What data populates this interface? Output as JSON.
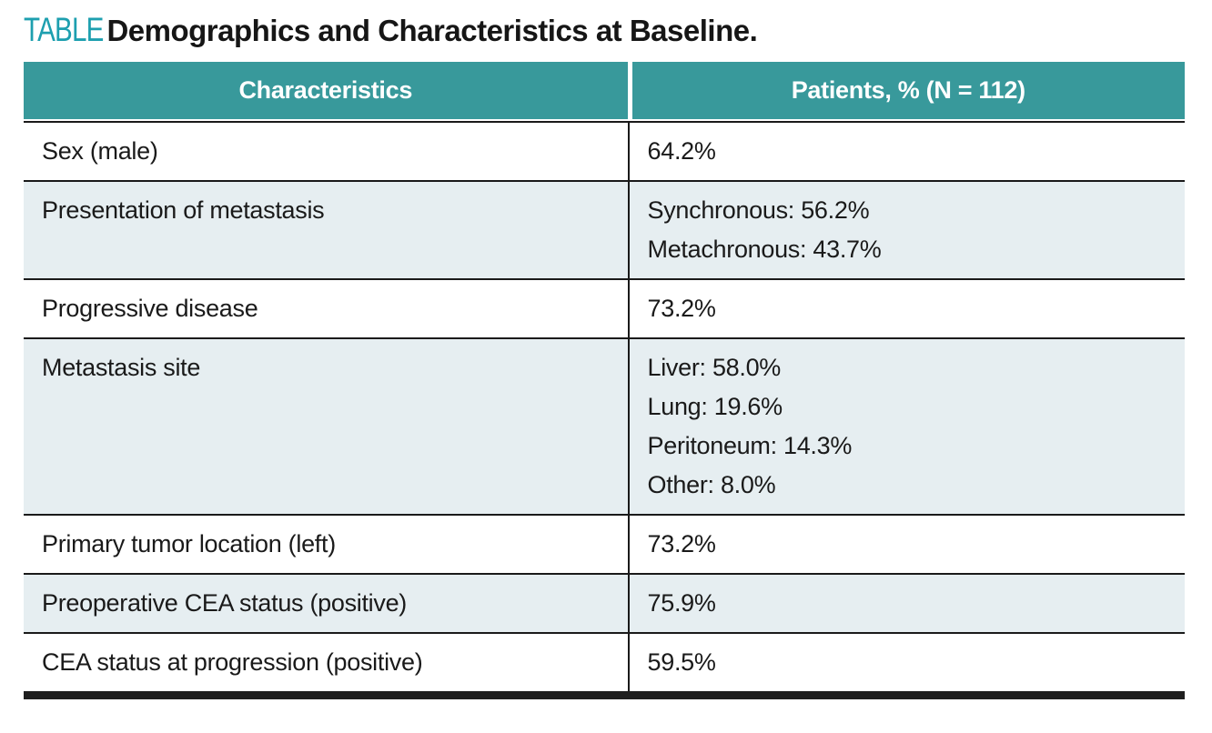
{
  "title": {
    "label": "TABLE",
    "text": "Demographics and Characteristics at Baseline."
  },
  "colors": {
    "header_background": "#38999b",
    "title_label_teal": "#1d9faf",
    "alt_row_background": "#e6eef1",
    "border_black": "#1a1a1a"
  },
  "table": {
    "columns": {
      "characteristics": "Characteristics",
      "patients": "Patients, % (N = 112)"
    },
    "rows": [
      {
        "characteristic": "Sex (male)",
        "values": [
          "64.2%"
        ]
      },
      {
        "characteristic": "Presentation of metastasis",
        "values": [
          "Synchronous: 56.2%",
          "Metachronous: 43.7%"
        ]
      },
      {
        "characteristic": "Progressive disease",
        "values": [
          "73.2%"
        ]
      },
      {
        "characteristic": "Metastasis site",
        "values": [
          "Liver: 58.0%",
          "Lung: 19.6%",
          "Peritoneum: 14.3%",
          "Other: 8.0%"
        ]
      },
      {
        "characteristic": "Primary tumor location (left)",
        "values": [
          "73.2%"
        ]
      },
      {
        "characteristic": "Preoperative CEA status (positive)",
        "values": [
          "75.9%"
        ]
      },
      {
        "characteristic": "CEA status at progression (positive)",
        "values": [
          "59.5%"
        ]
      }
    ]
  }
}
